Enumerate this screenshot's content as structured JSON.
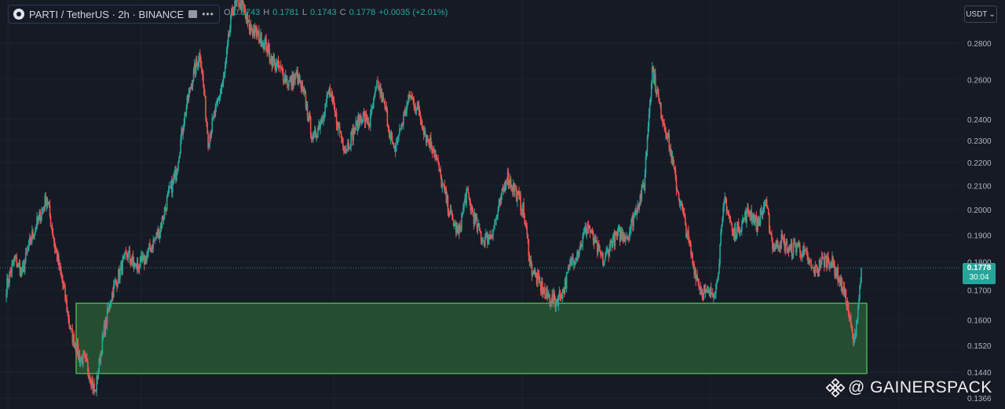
{
  "header": {
    "symbol": "PARTI / TetherUS · 2h · BINANCE",
    "more": "•••",
    "ohlc": [
      {
        "k": "O",
        "v": "0.1743"
      },
      {
        "k": "H",
        "v": "0.1781"
      },
      {
        "k": "L",
        "v": "0.1743"
      },
      {
        "k": "C",
        "v": "0.1778"
      }
    ],
    "change": "+0.0035 (+2.01%)"
  },
  "currency": "USDT",
  "current_price": {
    "price": "0.1778",
    "countdown": "30:04"
  },
  "watermark": "@ GAINERSPACK",
  "colors": {
    "up": "#26a69a",
    "down": "#ef5350",
    "background": "#161a25",
    "grid": "#1e2230",
    "zone_fill": "#2a5e35",
    "zone_border": "#4caf50",
    "axis_text": "#b2b5be"
  },
  "chart_data": {
    "type": "candlestick",
    "scale": "log",
    "ylim": [
      0.1366,
      0.3
    ],
    "y_ticks": [
      "0.2800",
      "0.2600",
      "0.2400",
      "0.2300",
      "0.2200",
      "0.2100",
      "0.2000",
      "0.1900",
      "0.1800",
      "0.1700",
      "0.1600",
      "0.1520",
      "0.1440",
      "0.1366"
    ],
    "grid": true,
    "zone": {
      "low": 0.1436,
      "high": 0.1655,
      "color": "green"
    },
    "current_close": 0.1778,
    "close_path": [
      0.171,
      0.181,
      0.176,
      0.188,
      0.196,
      0.205,
      0.186,
      0.172,
      0.156,
      0.149,
      0.146,
      0.138,
      0.155,
      0.168,
      0.176,
      0.183,
      0.178,
      0.18,
      0.186,
      0.192,
      0.205,
      0.215,
      0.24,
      0.26,
      0.275,
      0.23,
      0.245,
      0.262,
      0.3,
      0.305,
      0.29,
      0.285,
      0.28,
      0.27,
      0.265,
      0.258,
      0.262,
      0.25,
      0.23,
      0.24,
      0.254,
      0.238,
      0.226,
      0.234,
      0.242,
      0.238,
      0.258,
      0.244,
      0.224,
      0.238,
      0.252,
      0.245,
      0.232,
      0.226,
      0.21,
      0.198,
      0.19,
      0.207,
      0.196,
      0.188,
      0.19,
      0.2,
      0.214,
      0.208,
      0.2,
      0.178,
      0.172,
      0.168,
      0.166,
      0.17,
      0.18,
      0.185,
      0.194,
      0.186,
      0.18,
      0.188,
      0.19,
      0.19,
      0.2,
      0.21,
      0.266,
      0.245,
      0.23,
      0.21,
      0.195,
      0.18,
      0.17,
      0.168,
      0.172,
      0.205,
      0.19,
      0.194,
      0.2,
      0.194,
      0.203,
      0.185,
      0.188,
      0.184,
      0.186,
      0.182,
      0.176,
      0.18,
      0.181,
      0.175,
      0.167,
      0.152,
      0.1778
    ],
    "candles_per_segment": 10
  }
}
